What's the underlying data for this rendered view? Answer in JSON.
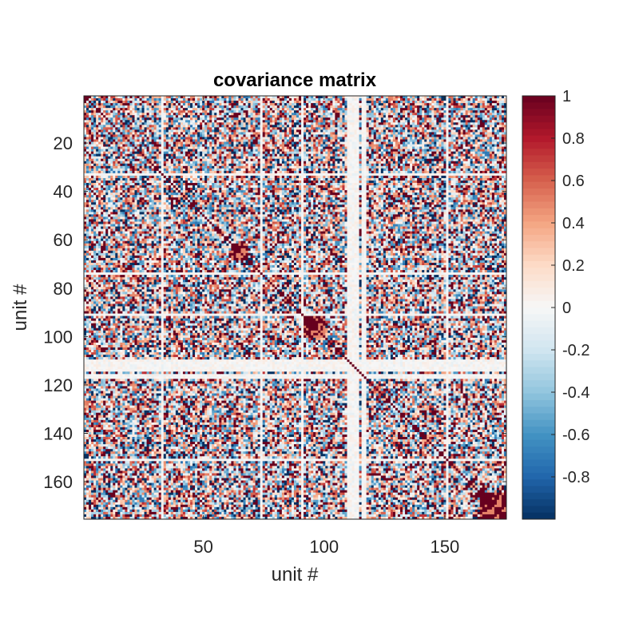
{
  "chart_data": {
    "type": "heatmap",
    "title": "covariance matrix",
    "xlabel": "unit #",
    "ylabel": "unit #",
    "n_units": 175,
    "xlim": [
      0.5,
      175.5
    ],
    "ylim": [
      0.5,
      175.5
    ],
    "y_direction": "reversed",
    "x_ticks": [
      50,
      100,
      150
    ],
    "x_tick_labels": [
      "50",
      "100",
      "150"
    ],
    "y_ticks": [
      20,
      40,
      60,
      80,
      100,
      120,
      140,
      160
    ],
    "y_tick_labels": [
      "20",
      "40",
      "60",
      "80",
      "100",
      "120",
      "140",
      "160"
    ],
    "colorbar": {
      "range": [
        -1,
        1
      ],
      "ticks": [
        1,
        0.8,
        0.6,
        0.4,
        0.2,
        0,
        -0.2,
        -0.4,
        -0.6,
        -0.8
      ],
      "tick_labels": [
        "1",
        "0.8",
        "0.6",
        "0.4",
        "0.2",
        "0",
        "-0.2",
        "-0.4",
        "-0.6",
        "-0.8"
      ],
      "colormap": "diverging red-white-blue",
      "color_positive": "#67001f",
      "color_zero": "#f7f7f7",
      "color_negative": "#053061"
    },
    "diagonal_value": 1,
    "quiet_units": [
      33,
      74,
      91,
      110,
      111,
      112,
      113,
      114,
      116,
      117,
      151
    ],
    "quiet_unit_note": "rows/columns with near-zero covariance (pale stripes)",
    "strong_blocks": [
      {
        "units": [
          62,
          68
        ],
        "sign": "positive"
      },
      {
        "units": [
          92,
          100
        ],
        "sign": "positive"
      },
      {
        "units": [
          165,
          175
        ],
        "sign": "positive"
      }
    ],
    "grid": false,
    "legend": "none"
  }
}
